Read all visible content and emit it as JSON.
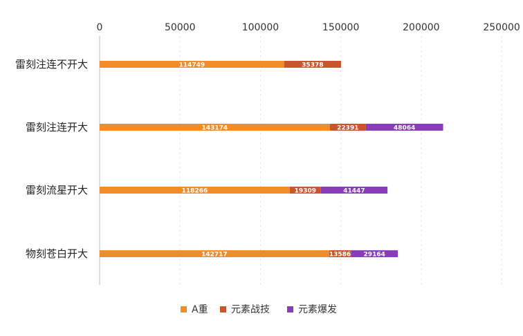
{
  "chart_data": {
    "type": "bar",
    "orientation": "horizontal",
    "stacked": true,
    "title": "",
    "xlabel": "",
    "ylabel": "",
    "xlim": [
      0,
      250000
    ],
    "x_ticks": [
      0,
      50000,
      100000,
      150000,
      200000,
      250000
    ],
    "x_tick_labels": [
      "0",
      "50000",
      "100000",
      "150000",
      "200000",
      "250000"
    ],
    "x_axis_position": "top",
    "grid": "vertical dashed",
    "legend_position": "bottom",
    "categories": [
      "雷刻注连不开大",
      "雷刻注连开大",
      "雷刻流星开大",
      "物刻苍白开大"
    ],
    "series": [
      {
        "name": "A重",
        "color": "#F28C28",
        "values": [
          114749,
          143174,
          118266,
          142717
        ]
      },
      {
        "name": "元素战技",
        "color": "#C8552E",
        "values": [
          35378,
          22391,
          19309,
          13586
        ]
      },
      {
        "name": "元素爆发",
        "color": "#8A3DB8",
        "values": [
          null,
          48064,
          41447,
          29164
        ]
      }
    ]
  }
}
